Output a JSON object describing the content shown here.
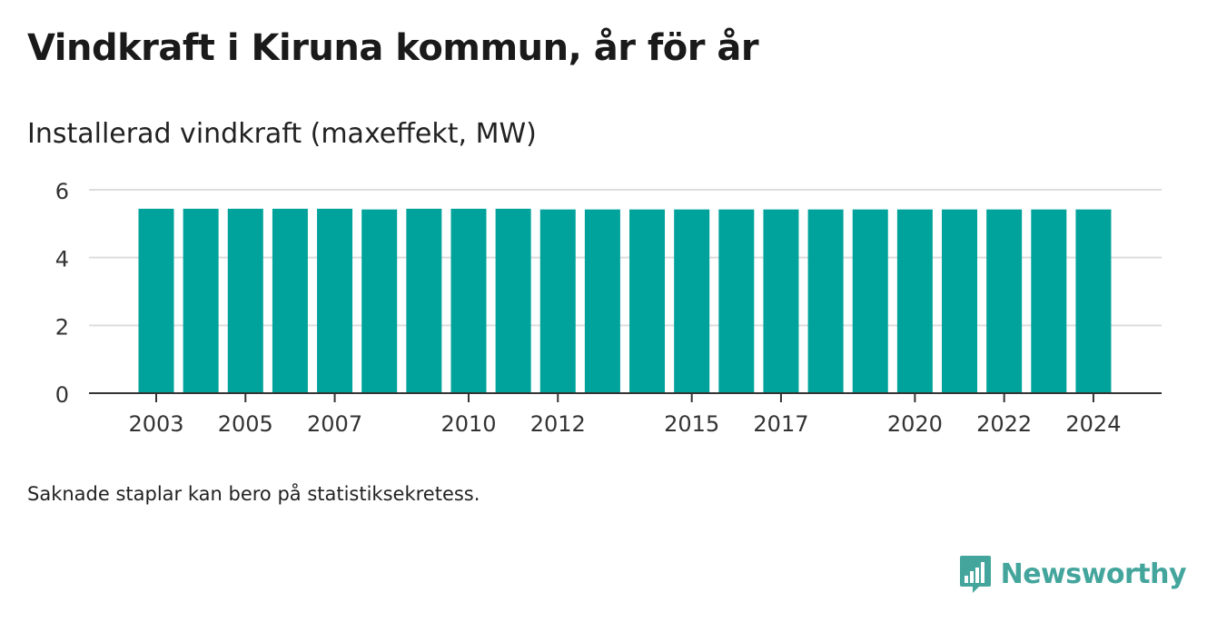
{
  "title": "Vindkraft i Kiruna kommun, år för år",
  "subtitle": "Installerad vindkraft (maxeffekt, MW)",
  "footnote": "Saknade staplar kan bero på statistiksekretess.",
  "brand": {
    "name": "Newsworthy",
    "icon": "newsworthy-logo-icon"
  },
  "colors": {
    "bar": "#00a39b",
    "grid": "#dddddd",
    "axis": "#333333",
    "brand": "#43a59c"
  },
  "chart_data": {
    "type": "bar",
    "categories": [
      "2003",
      "2004",
      "2005",
      "2006",
      "2007",
      "2008",
      "2009",
      "2010",
      "2011",
      "2012",
      "2013",
      "2014",
      "2015",
      "2016",
      "2017",
      "2018",
      "2019",
      "2020",
      "2021",
      "2022",
      "2023",
      "2024"
    ],
    "values": [
      5.44,
      5.44,
      5.44,
      5.44,
      5.44,
      5.42,
      5.44,
      5.44,
      5.44,
      5.42,
      5.42,
      5.42,
      5.42,
      5.42,
      5.42,
      5.42,
      5.42,
      5.42,
      5.42,
      5.42,
      5.42,
      5.42
    ],
    "x_tick_labels": [
      "2003",
      "2005",
      "2007",
      "2010",
      "2012",
      "2015",
      "2017",
      "2020",
      "2022",
      "2024"
    ],
    "y_ticks": [
      0,
      2,
      4,
      6
    ],
    "ylim": [
      0,
      6
    ],
    "xlabel": "",
    "ylabel": "",
    "grid": true,
    "legend": "none"
  }
}
